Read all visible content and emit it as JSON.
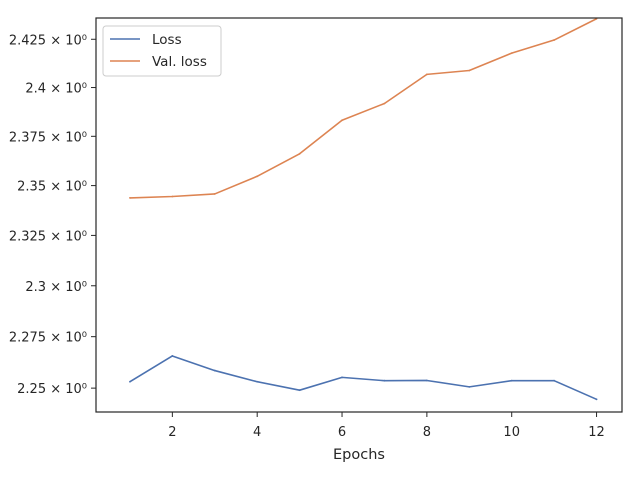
{
  "chart_data": {
    "type": "line",
    "title": "",
    "xlabel": "Epochs",
    "ylabel": "",
    "yscale": "log",
    "grid": false,
    "legend_position": "top-left",
    "x": [
      1,
      2,
      3,
      4,
      5,
      6,
      7,
      8,
      9,
      10,
      11,
      12
    ],
    "xlim": [
      0.2,
      12.6
    ],
    "ylim": [
      2.2385,
      2.4361
    ],
    "x_ticks": [
      2,
      4,
      6,
      8,
      10,
      12
    ],
    "x_tick_labels": [
      "2",
      "4",
      "6",
      "8",
      "10",
      "12"
    ],
    "y_ticks": [
      2.25,
      2.275,
      2.3,
      2.325,
      2.35,
      2.375,
      2.4,
      2.425
    ],
    "y_tick_labels": [
      "2.25 × 10⁰",
      "2.275 × 10⁰",
      "2.3 × 10⁰",
      "2.325 × 10⁰",
      "2.35 × 10⁰",
      "2.375 × 10⁰",
      "2.4 × 10⁰",
      "2.425 × 10⁰"
    ],
    "series": [
      {
        "name": "Loss",
        "color": "#4c72b0",
        "values": [
          2.2531,
          2.2656,
          2.2585,
          2.2531,
          2.249,
          2.2552,
          2.2536,
          2.2537,
          2.2506,
          2.2536,
          2.2536,
          2.2446
        ]
      },
      {
        "name": "Val. loss",
        "color": "#dd8452",
        "values": [
          2.3438,
          2.3445,
          2.3458,
          2.3547,
          2.3661,
          2.3832,
          2.3918,
          2.4068,
          2.4088,
          2.4178,
          2.4246,
          2.4357
        ]
      }
    ]
  }
}
